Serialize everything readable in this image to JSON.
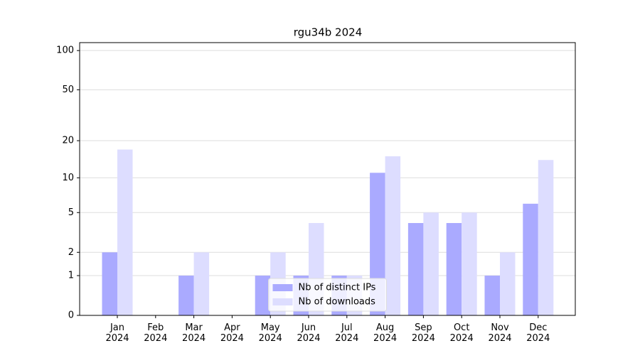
{
  "chart_data": {
    "type": "bar",
    "title": "rgu34b 2024",
    "categories": [
      "Jan 2024",
      "Feb 2024",
      "Mar 2024",
      "Apr 2024",
      "May 2024",
      "Jun 2024",
      "Jul 2024",
      "Aug 2024",
      "Sep 2024",
      "Oct 2024",
      "Nov 2024",
      "Dec 2024"
    ],
    "series": [
      {
        "name": "Nb of distinct IPs",
        "color": "#aaaaff",
        "values": [
          2,
          0,
          1,
          0,
          1,
          1,
          1,
          11,
          4,
          4,
          1,
          6
        ]
      },
      {
        "name": "Nb of downloads",
        "color": "#ddddff",
        "values": [
          17,
          0,
          2,
          0,
          2,
          4,
          1,
          15,
          5,
          5,
          2,
          14
        ]
      }
    ],
    "yscale": "log1p",
    "ylim": [
      0,
      115
    ],
    "yticks": [
      0,
      1,
      2,
      5,
      10,
      20,
      50,
      100
    ],
    "grid": true,
    "legend": "lower center"
  }
}
